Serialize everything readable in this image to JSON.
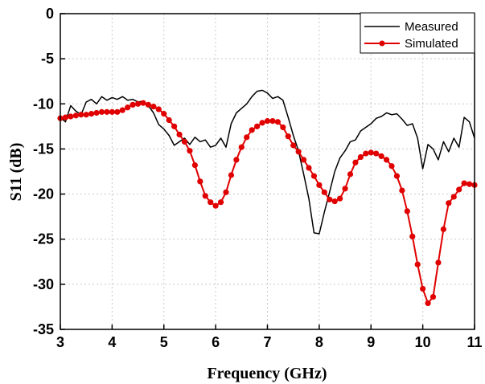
{
  "chart_data": {
    "type": "line",
    "title": "",
    "xlabel": "Frequency (GHz)",
    "ylabel": "S11 (dB)",
    "xlim": [
      3,
      11
    ],
    "ylim": [
      -35,
      0
    ],
    "x_ticks": [
      3,
      4,
      5,
      6,
      7,
      8,
      9,
      10,
      11
    ],
    "y_ticks": [
      0,
      -5,
      -10,
      -15,
      -20,
      -25,
      -30,
      -35
    ],
    "grid": "on (dotted)",
    "legend_position": "top-right",
    "series": [
      {
        "name": "Measured",
        "color": "#000000",
        "marker": "none",
        "x": [
          3.0,
          3.1,
          3.2,
          3.3,
          3.4,
          3.5,
          3.6,
          3.7,
          3.8,
          3.9,
          4.0,
          4.1,
          4.2,
          4.3,
          4.4,
          4.5,
          4.6,
          4.7,
          4.8,
          4.9,
          5.0,
          5.1,
          5.2,
          5.3,
          5.4,
          5.5,
          5.6,
          5.7,
          5.8,
          5.9,
          6.0,
          6.1,
          6.2,
          6.3,
          6.4,
          6.5,
          6.6,
          6.7,
          6.8,
          6.9,
          7.0,
          7.1,
          7.2,
          7.3,
          7.4,
          7.5,
          7.6,
          7.7,
          7.8,
          7.9,
          8.0,
          8.1,
          8.2,
          8.3,
          8.4,
          8.5,
          8.6,
          8.7,
          8.8,
          8.9,
          9.0,
          9.1,
          9.2,
          9.3,
          9.4,
          9.5,
          9.6,
          9.7,
          9.8,
          9.9,
          10.0,
          10.1,
          10.2,
          10.3,
          10.4,
          10.5,
          10.6,
          10.7,
          10.8,
          10.9,
          11.0
        ],
        "y": [
          -11.5,
          -12.0,
          -10.2,
          -10.8,
          -11.2,
          -9.8,
          -9.5,
          -10.0,
          -9.2,
          -9.6,
          -9.3,
          -9.5,
          -9.2,
          -9.6,
          -9.5,
          -9.8,
          -9.7,
          -10.2,
          -11.0,
          -12.3,
          -12.8,
          -13.5,
          -14.6,
          -14.2,
          -13.8,
          -14.5,
          -13.7,
          -14.2,
          -14.0,
          -14.8,
          -14.6,
          -13.8,
          -14.8,
          -12.2,
          -11.0,
          -10.5,
          -10.0,
          -9.2,
          -8.6,
          -8.5,
          -8.8,
          -9.4,
          -9.2,
          -9.6,
          -11.5,
          -13.5,
          -15.2,
          -17.8,
          -20.5,
          -24.3,
          -24.4,
          -22.0,
          -19.8,
          -17.5,
          -16.0,
          -15.2,
          -14.2,
          -14.0,
          -13.0,
          -12.6,
          -12.2,
          -11.6,
          -11.4,
          -11.0,
          -11.2,
          -11.1,
          -11.7,
          -12.4,
          -12.2,
          -13.8,
          -17.2,
          -14.5,
          -15.0,
          -16.2,
          -14.2,
          -15.3,
          -13.8,
          -14.8,
          -11.5,
          -12.0,
          -13.8
        ]
      },
      {
        "name": "Simulated",
        "color": "#e00000",
        "marker": "circle",
        "x": [
          3.0,
          3.1,
          3.2,
          3.3,
          3.4,
          3.5,
          3.6,
          3.7,
          3.8,
          3.9,
          4.0,
          4.1,
          4.2,
          4.3,
          4.4,
          4.5,
          4.6,
          4.7,
          4.8,
          4.9,
          5.0,
          5.1,
          5.2,
          5.3,
          5.4,
          5.5,
          5.6,
          5.7,
          5.8,
          5.9,
          6.0,
          6.1,
          6.2,
          6.3,
          6.4,
          6.5,
          6.6,
          6.7,
          6.8,
          6.9,
          7.0,
          7.1,
          7.2,
          7.3,
          7.4,
          7.5,
          7.6,
          7.7,
          7.8,
          7.9,
          8.0,
          8.1,
          8.2,
          8.3,
          8.4,
          8.5,
          8.6,
          8.7,
          8.8,
          8.9,
          9.0,
          9.1,
          9.2,
          9.3,
          9.4,
          9.5,
          9.6,
          9.7,
          9.8,
          9.9,
          10.0,
          10.1,
          10.2,
          10.3,
          10.4,
          10.5,
          10.6,
          10.7,
          10.8,
          10.9,
          11.0
        ],
        "y": [
          -11.6,
          -11.5,
          -11.4,
          -11.3,
          -11.2,
          -11.2,
          -11.1,
          -11.0,
          -10.9,
          -10.9,
          -10.9,
          -10.9,
          -10.7,
          -10.4,
          -10.1,
          -10.0,
          -9.9,
          -10.1,
          -10.3,
          -10.6,
          -11.1,
          -11.8,
          -12.5,
          -13.4,
          -14.2,
          -15.2,
          -16.8,
          -18.6,
          -20.2,
          -20.9,
          -21.3,
          -20.9,
          -19.8,
          -17.9,
          -16.2,
          -14.8,
          -13.7,
          -12.9,
          -12.5,
          -12.1,
          -11.9,
          -11.9,
          -12.0,
          -12.6,
          -13.6,
          -14.6,
          -15.3,
          -16.2,
          -17.1,
          -18.0,
          -19.0,
          -19.8,
          -20.6,
          -20.8,
          -20.5,
          -19.4,
          -17.8,
          -16.5,
          -15.9,
          -15.5,
          -15.4,
          -15.5,
          -15.8,
          -16.2,
          -16.9,
          -18.0,
          -19.6,
          -21.9,
          -24.7,
          -27.8,
          -30.5,
          -32.1,
          -31.4,
          -27.6,
          -23.9,
          -21.0,
          -20.3,
          -19.5,
          -18.8,
          -18.9,
          -19.0
        ],
        "marker_x": [
          3.0,
          3.1,
          3.2,
          3.3,
          3.4,
          3.5,
          3.6,
          3.7,
          3.8,
          3.9,
          4.0,
          4.1,
          4.2,
          4.3,
          4.4,
          4.5,
          4.6,
          4.7,
          4.8,
          4.9,
          5.0,
          5.1,
          5.2,
          5.3,
          5.4,
          5.5,
          5.6,
          5.7,
          5.8,
          5.9,
          6.0,
          6.1,
          6.2,
          6.3,
          6.4,
          6.5,
          6.6,
          6.7,
          6.8,
          6.9,
          7.0,
          7.1,
          7.2,
          7.3,
          7.4,
          7.5,
          7.6,
          7.7,
          7.8,
          7.9,
          8.0,
          8.1,
          8.2,
          8.3,
          8.4,
          8.5,
          8.6,
          8.7,
          8.8,
          8.9,
          9.0,
          9.1,
          9.2,
          9.3,
          9.4,
          9.5,
          9.6,
          9.7,
          9.8,
          9.9,
          10.0,
          10.1,
          10.2,
          10.3,
          10.4,
          10.5,
          10.6,
          10.7,
          10.8,
          10.9,
          11.0
        ]
      }
    ]
  }
}
